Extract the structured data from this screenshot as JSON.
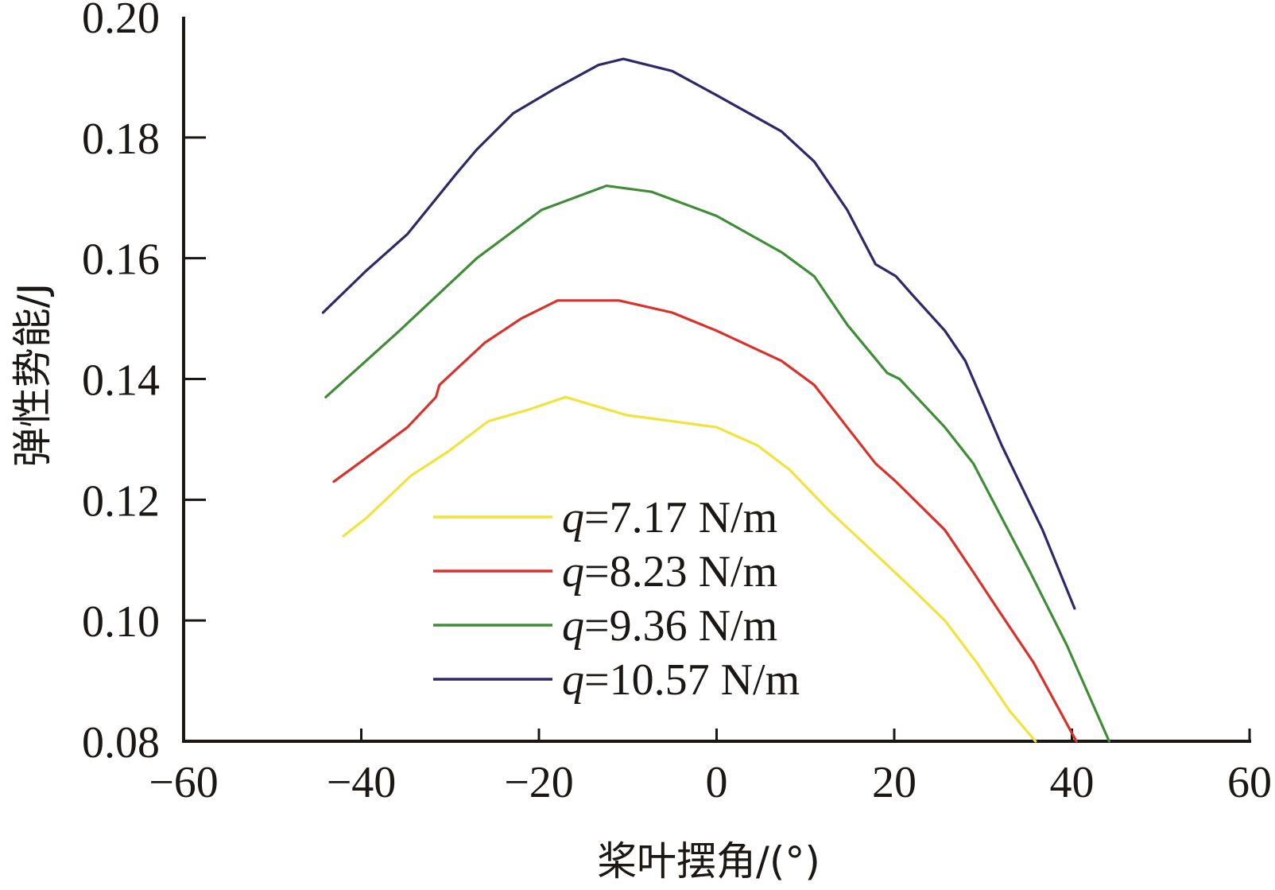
{
  "chart_data": {
    "type": "line",
    "title": "",
    "xlabel": "桨叶摆角/(°)",
    "ylabel": "弹性势能/J",
    "xlim": [
      -60,
      60
    ],
    "ylim": [
      0.08,
      0.2
    ],
    "xticks": [
      -60,
      -40,
      -20,
      0,
      20,
      40,
      60
    ],
    "xtick_labels": [
      "−60",
      "−40",
      "−20",
      "0",
      "20",
      "40",
      "60"
    ],
    "yticks": [
      0.08,
      0.1,
      0.12,
      0.14,
      0.16,
      0.18,
      0.2
    ],
    "ytick_labels": [
      "0.08",
      "0.10",
      "0.12",
      "0.14",
      "0.16",
      "0.18",
      "0.20"
    ],
    "grid": false,
    "legend_position": "center-bottom",
    "series": [
      {
        "name": "q=7.17 N/m",
        "q_symbol": "q",
        "q_value": "=7.17 N/m",
        "color": "#f2e33c",
        "x": [
          -42.0,
          -39.4,
          -34.4,
          -30.2,
          -25.7,
          -21.0,
          -17.0,
          -10.1,
          -5.0,
          0,
          4.6,
          8.2,
          12.8,
          17.9,
          21.5,
          25.7,
          29.3,
          33.0,
          35.9
        ],
        "y": [
          0.114,
          0.117,
          0.124,
          0.128,
          0.133,
          0.135,
          0.137,
          0.134,
          0.133,
          0.132,
          0.129,
          0.125,
          0.118,
          0.111,
          0.106,
          0.1,
          0.093,
          0.085,
          0.08
        ]
      },
      {
        "name": "q=8.23 N/m",
        "q_symbol": "q",
        "q_value": "=8.23 N/m",
        "color": "#d8322a",
        "x": [
          -43.1,
          -40.3,
          -34.8,
          -31.6,
          -31.2,
          -26.1,
          -22.0,
          -17.9,
          -11.0,
          -5.0,
          0,
          7.3,
          11.0,
          14.7,
          17.9,
          20.2,
          25.7,
          28.9,
          31.6,
          35.7,
          40.5
        ],
        "y": [
          0.123,
          0.126,
          0.132,
          0.137,
          0.139,
          0.146,
          0.15,
          0.153,
          0.153,
          0.151,
          0.148,
          0.143,
          0.139,
          0.132,
          0.126,
          0.123,
          0.115,
          0.108,
          0.102,
          0.093,
          0.08
        ]
      },
      {
        "name": "q=9.36 N/m",
        "q_symbol": "q",
        "q_value": "=9.36 N/m",
        "color": "#3f8d37",
        "x": [
          -44.0,
          -35.7,
          -27.0,
          -19.7,
          -12.4,
          -7.3,
          0,
          7.3,
          11.0,
          14.7,
          19.2,
          20.6,
          25.7,
          28.9,
          35.3,
          39.4,
          44.2
        ],
        "y": [
          0.137,
          0.148,
          0.16,
          0.168,
          0.172,
          0.171,
          0.167,
          0.161,
          0.157,
          0.149,
          0.141,
          0.14,
          0.132,
          0.126,
          0.108,
          0.096,
          0.08
        ]
      },
      {
        "name": "q=10.57 N/m",
        "q_symbol": "q",
        "q_value": "=10.57 N/m",
        "color": "#2d2868",
        "x": [
          -44.3,
          -39.4,
          -34.8,
          -29.3,
          -27.0,
          -22.9,
          -18.3,
          -13.3,
          -10.5,
          -5.0,
          0,
          7.3,
          11.0,
          14.7,
          17.9,
          20.2,
          22.0,
          25.7,
          28.0,
          32.1,
          34.4,
          36.7,
          40.3
        ],
        "y": [
          0.151,
          0.158,
          0.164,
          0.174,
          0.178,
          0.184,
          0.188,
          0.192,
          0.193,
          0.191,
          0.187,
          0.181,
          0.176,
          0.168,
          0.159,
          0.157,
          0.154,
          0.148,
          0.143,
          0.129,
          0.122,
          0.115,
          0.102
        ]
      }
    ]
  }
}
